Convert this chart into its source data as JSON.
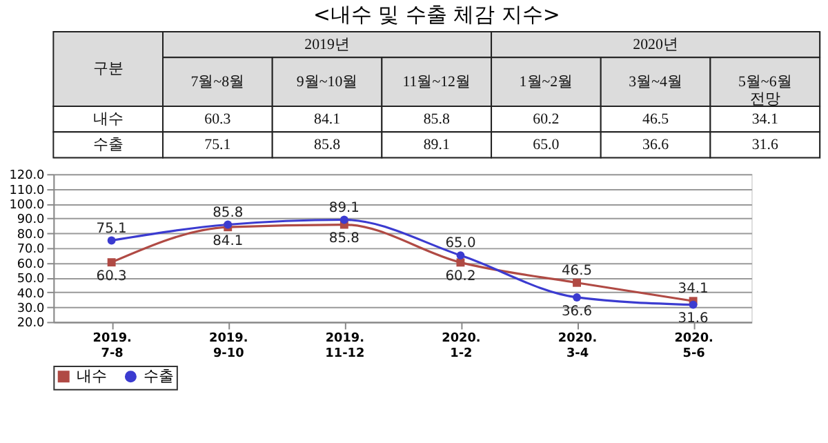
{
  "chart_data": [
    {
      "type": "other",
      "title": "<내수 및 수출 체감 지수>",
      "annotations": [
        "구분",
        "2019년",
        "2020년",
        "7월~8월",
        "9월~10월",
        "11월~12월",
        "1월~2월",
        "3월~4월",
        "5월~6월\n전망",
        "내수",
        "60.3",
        "84.1",
        "85.8",
        "60.2",
        "46.5",
        "34.1",
        "수출",
        "75.1",
        "85.8",
        "89.1",
        "65.0",
        "36.6",
        "31.6"
      ]
    },
    {
      "type": "line",
      "categories": [
        "2019.\n7-8",
        "2019.\n9-10",
        "2019.\n11-12",
        "2020.\n1-2",
        "2020.\n3-4",
        "2020.\n5-6"
      ],
      "series": [
        {
          "name": "내수",
          "color": "#b04a44",
          "marker": "square",
          "values": [
            60.3,
            84.1,
            85.8,
            60.2,
            46.5,
            34.1
          ]
        },
        {
          "name": "수출",
          "color": "#3b3bd0",
          "marker": "circle",
          "values": [
            75.1,
            85.8,
            89.1,
            65.0,
            36.6,
            31.6
          ],
          "value_labels": [
            "75.1",
            "85.8",
            "89.1",
            "65.0",
            "36.6",
            "31.6"
          ]
        }
      ],
      "ylim": [
        20,
        120
      ],
      "yticks": [
        {
          "value": 20,
          "label": "20.0"
        },
        {
          "value": 30,
          "label": "30.0"
        },
        {
          "value": 40,
          "label": "40.0"
        },
        {
          "value": 50,
          "label": "50.0"
        },
        {
          "value": 60,
          "label": "60.0"
        },
        {
          "value": 70,
          "label": "70.0"
        },
        {
          "value": 80,
          "label": "80.0"
        },
        {
          "value": 90,
          "label": "90.0"
        },
        {
          "value": 100,
          "label": "100.0"
        },
        {
          "value": 110,
          "label": "110.0"
        },
        {
          "value": 120,
          "label": "120.0"
        }
      ],
      "grid": "y",
      "legend": "bottom",
      "data_labels": true,
      "line_style": "solid"
    }
  ]
}
